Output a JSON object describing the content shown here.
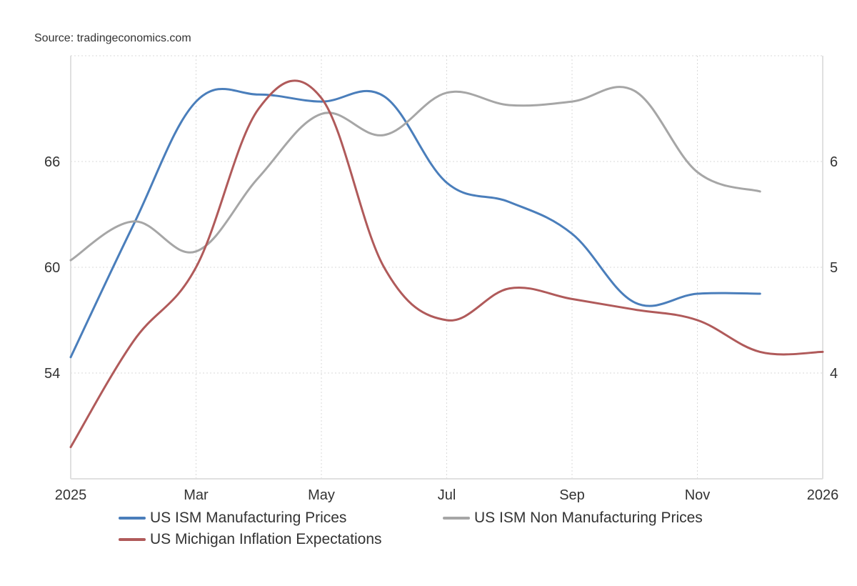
{
  "source": "Source: tradingeconomics.com",
  "chart_data": {
    "type": "line",
    "title": "",
    "x": [
      "2025-01",
      "2025-02",
      "2025-03",
      "2025-04",
      "2025-05",
      "2025-06",
      "2025-07",
      "2025-08",
      "2025-09",
      "2025-10",
      "2025-11",
      "2025-12",
      "2026-01"
    ],
    "x_ticks": [
      {
        "label": "2025",
        "month": 0
      },
      {
        "label": "Mar",
        "month": 2
      },
      {
        "label": "May",
        "month": 4
      },
      {
        "label": "Jul",
        "month": 6
      },
      {
        "label": "Sep",
        "month": 8
      },
      {
        "label": "Nov",
        "month": 10
      },
      {
        "label": "2026",
        "month": 12
      }
    ],
    "left_axis": {
      "range": [
        48,
        72
      ],
      "ticks": [
        54,
        60,
        66
      ],
      "gridlines": [
        54,
        60,
        66,
        72
      ]
    },
    "right_axis": {
      "range": [
        3,
        7
      ],
      "ticks": [
        4,
        5,
        6
      ]
    },
    "grid": true,
    "legend_position": "bottom",
    "series": [
      {
        "name": "US ISM Manufacturing Prices",
        "axis": "left",
        "color": "#4a7ebb",
        "values": [
          54.9,
          62.4,
          69.4,
          69.8,
          69.4,
          69.7,
          64.8,
          63.7,
          61.9,
          58.0,
          58.5,
          58.5,
          null
        ]
      },
      {
        "name": "US ISM Non Manufacturing Prices",
        "axis": "left",
        "color": "#a6a6a6",
        "values": [
          60.4,
          62.6,
          60.9,
          65.1,
          68.7,
          67.5,
          69.9,
          69.2,
          69.4,
          70.0,
          65.4,
          64.3,
          null
        ]
      },
      {
        "name": "US Michigan Inflation Expectations",
        "axis": "right",
        "color": "#b05a5a",
        "values": [
          3.3,
          4.3,
          5.0,
          6.5,
          6.6,
          5.0,
          4.5,
          4.8,
          4.7,
          4.6,
          4.5,
          4.2,
          4.2
        ]
      }
    ]
  }
}
